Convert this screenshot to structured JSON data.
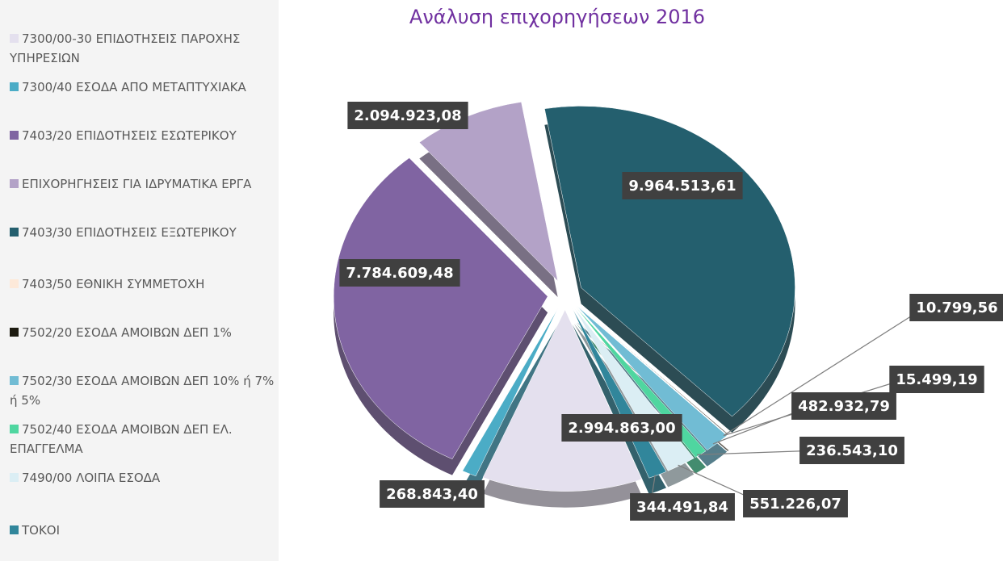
{
  "chart_data": {
    "type": "pie",
    "title": "Ανάλυση επιχορηγήσεων 2016",
    "categories": [
      "7300/00-30 ΕΠΙΔΟΤΗΣΕΙΣ ΠΑΡΟΧΗΣ ΥΠΗΡΕΣΙΩΝ",
      "7300/40 ΕΣΟΔΑ ΑΠΟ ΜΕΤΑΠΤΥΧΙΑΚΑ",
      "7403/20 ΕΠΙΔΟΤΗΣΕΙΣ ΕΣΩΤΕΡΙΚΟΥ",
      "ΕΠΙΧΟΡΗΓΗΣΕΙΣ ΓΙΑ ΙΔΡΥΜΑΤΙΚΑ ΕΡΓΑ",
      "7403/30 ΕΠΙΔΟΤΗΣΕΙΣ ΕΞΩΤΕΡΙΚΟΥ",
      "7403/50 ΕΘΝΙΚΗ ΣΥΜΜΕΤΟΧΗ",
      "7502/20 ΕΣΟΔΑ ΑΜΟΙΒΩΝ ΔΕΠ 1%",
      "7502/30 ΕΣΟΔΑ ΑΜΟΙΒΩΝ ΔΕΠ 10% ή 7% ή 5%",
      "7502/40 ΕΣΟΔΑ ΑΜΟΙΒΩΝ ΔΕΠ ΕΛ. ΕΠΑΓΓΕΛΜΑ",
      "7490/00 ΛΟΙΠΑ ΕΣΟΔΑ",
      "ΤΟΚΟΙ"
    ],
    "values": [
      2994863.0,
      268843.4,
      7784609.48,
      2094923.08,
      9964513.61,
      10799.56,
      15499.19,
      482932.79,
      236543.1,
      551226.07,
      344491.84
    ],
    "value_labels": [
      "2.994.863,00",
      "268.843,40",
      "7.784.609,48",
      "2.094.923,08",
      "9.964.513,61",
      "10.799,56",
      "15.499,19",
      "482.932,79",
      "236.543,10",
      "551.226,07",
      "344.491,84"
    ],
    "colors": [
      "#e4e0ee",
      "#4bacc6",
      "#8064a2",
      "#b3a2c7",
      "#245f6e",
      "#fde9d9",
      "#1d1b10",
      "#71bcd4",
      "#4fd6a0",
      "#dbeef4",
      "#31869b"
    ],
    "legend": "left"
  }
}
